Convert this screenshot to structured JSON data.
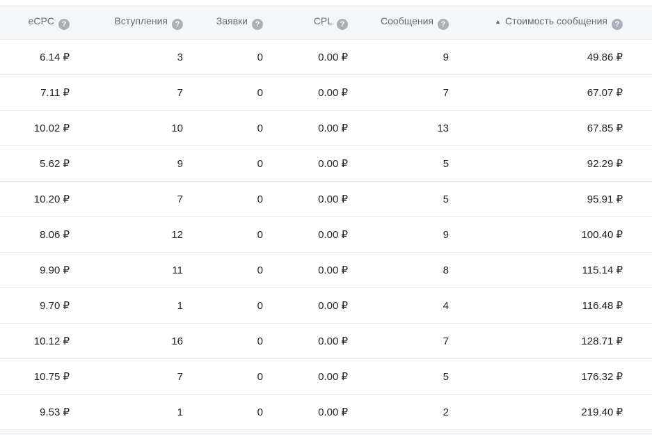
{
  "icons": {
    "help_glyph": "?",
    "sort_ascending_glyph": "▲"
  },
  "colors": {
    "header_background": "#f5f6f8",
    "header_text": "#5d6b7f",
    "row_divider": "#e7e8ec",
    "cell_text": "#222222",
    "help_icon_background": "#a9b0ba",
    "help_icon_glyph": "#ffffff"
  },
  "table": {
    "sorted_column": "Стоимость сообщения",
    "sort_direction": "ascending",
    "columns": [
      {
        "label": "eCPC",
        "has_help_icon": true,
        "sorted": false
      },
      {
        "label": "Вступления",
        "has_help_icon": true,
        "sorted": false
      },
      {
        "label": "Заявки",
        "has_help_icon": true,
        "sorted": false
      },
      {
        "label": "CPL",
        "has_help_icon": true,
        "sorted": false
      },
      {
        "label": "Сообщения",
        "has_help_icon": true,
        "sorted": false
      },
      {
        "label": "Стоимость сообщения",
        "has_help_icon": true,
        "sorted": true
      }
    ],
    "rows": [
      [
        "6.14 ₽",
        "3",
        "0",
        "0.00 ₽",
        "9",
        "49.86 ₽"
      ],
      [
        "7.11 ₽",
        "7",
        "0",
        "0.00 ₽",
        "7",
        "67.07 ₽"
      ],
      [
        "10.02 ₽",
        "10",
        "0",
        "0.00 ₽",
        "13",
        "67.85 ₽"
      ],
      [
        "5.62 ₽",
        "9",
        "0",
        "0.00 ₽",
        "5",
        "92.29 ₽"
      ],
      [
        "10.20 ₽",
        "7",
        "0",
        "0.00 ₽",
        "5",
        "95.91 ₽"
      ],
      [
        "8.06 ₽",
        "12",
        "0",
        "0.00 ₽",
        "9",
        "100.40 ₽"
      ],
      [
        "9.90 ₽",
        "11",
        "0",
        "0.00 ₽",
        "8",
        "115.14 ₽"
      ],
      [
        "9.70 ₽",
        "1",
        "0",
        "0.00 ₽",
        "4",
        "116.48 ₽"
      ],
      [
        "10.12 ₽",
        "16",
        "0",
        "0.00 ₽",
        "7",
        "128.71 ₽"
      ],
      [
        "10.75 ₽",
        "7",
        "0",
        "0.00 ₽",
        "5",
        "176.32 ₽"
      ],
      [
        "9.53 ₽",
        "1",
        "0",
        "0.00 ₽",
        "2",
        "219.40 ₽"
      ]
    ]
  }
}
